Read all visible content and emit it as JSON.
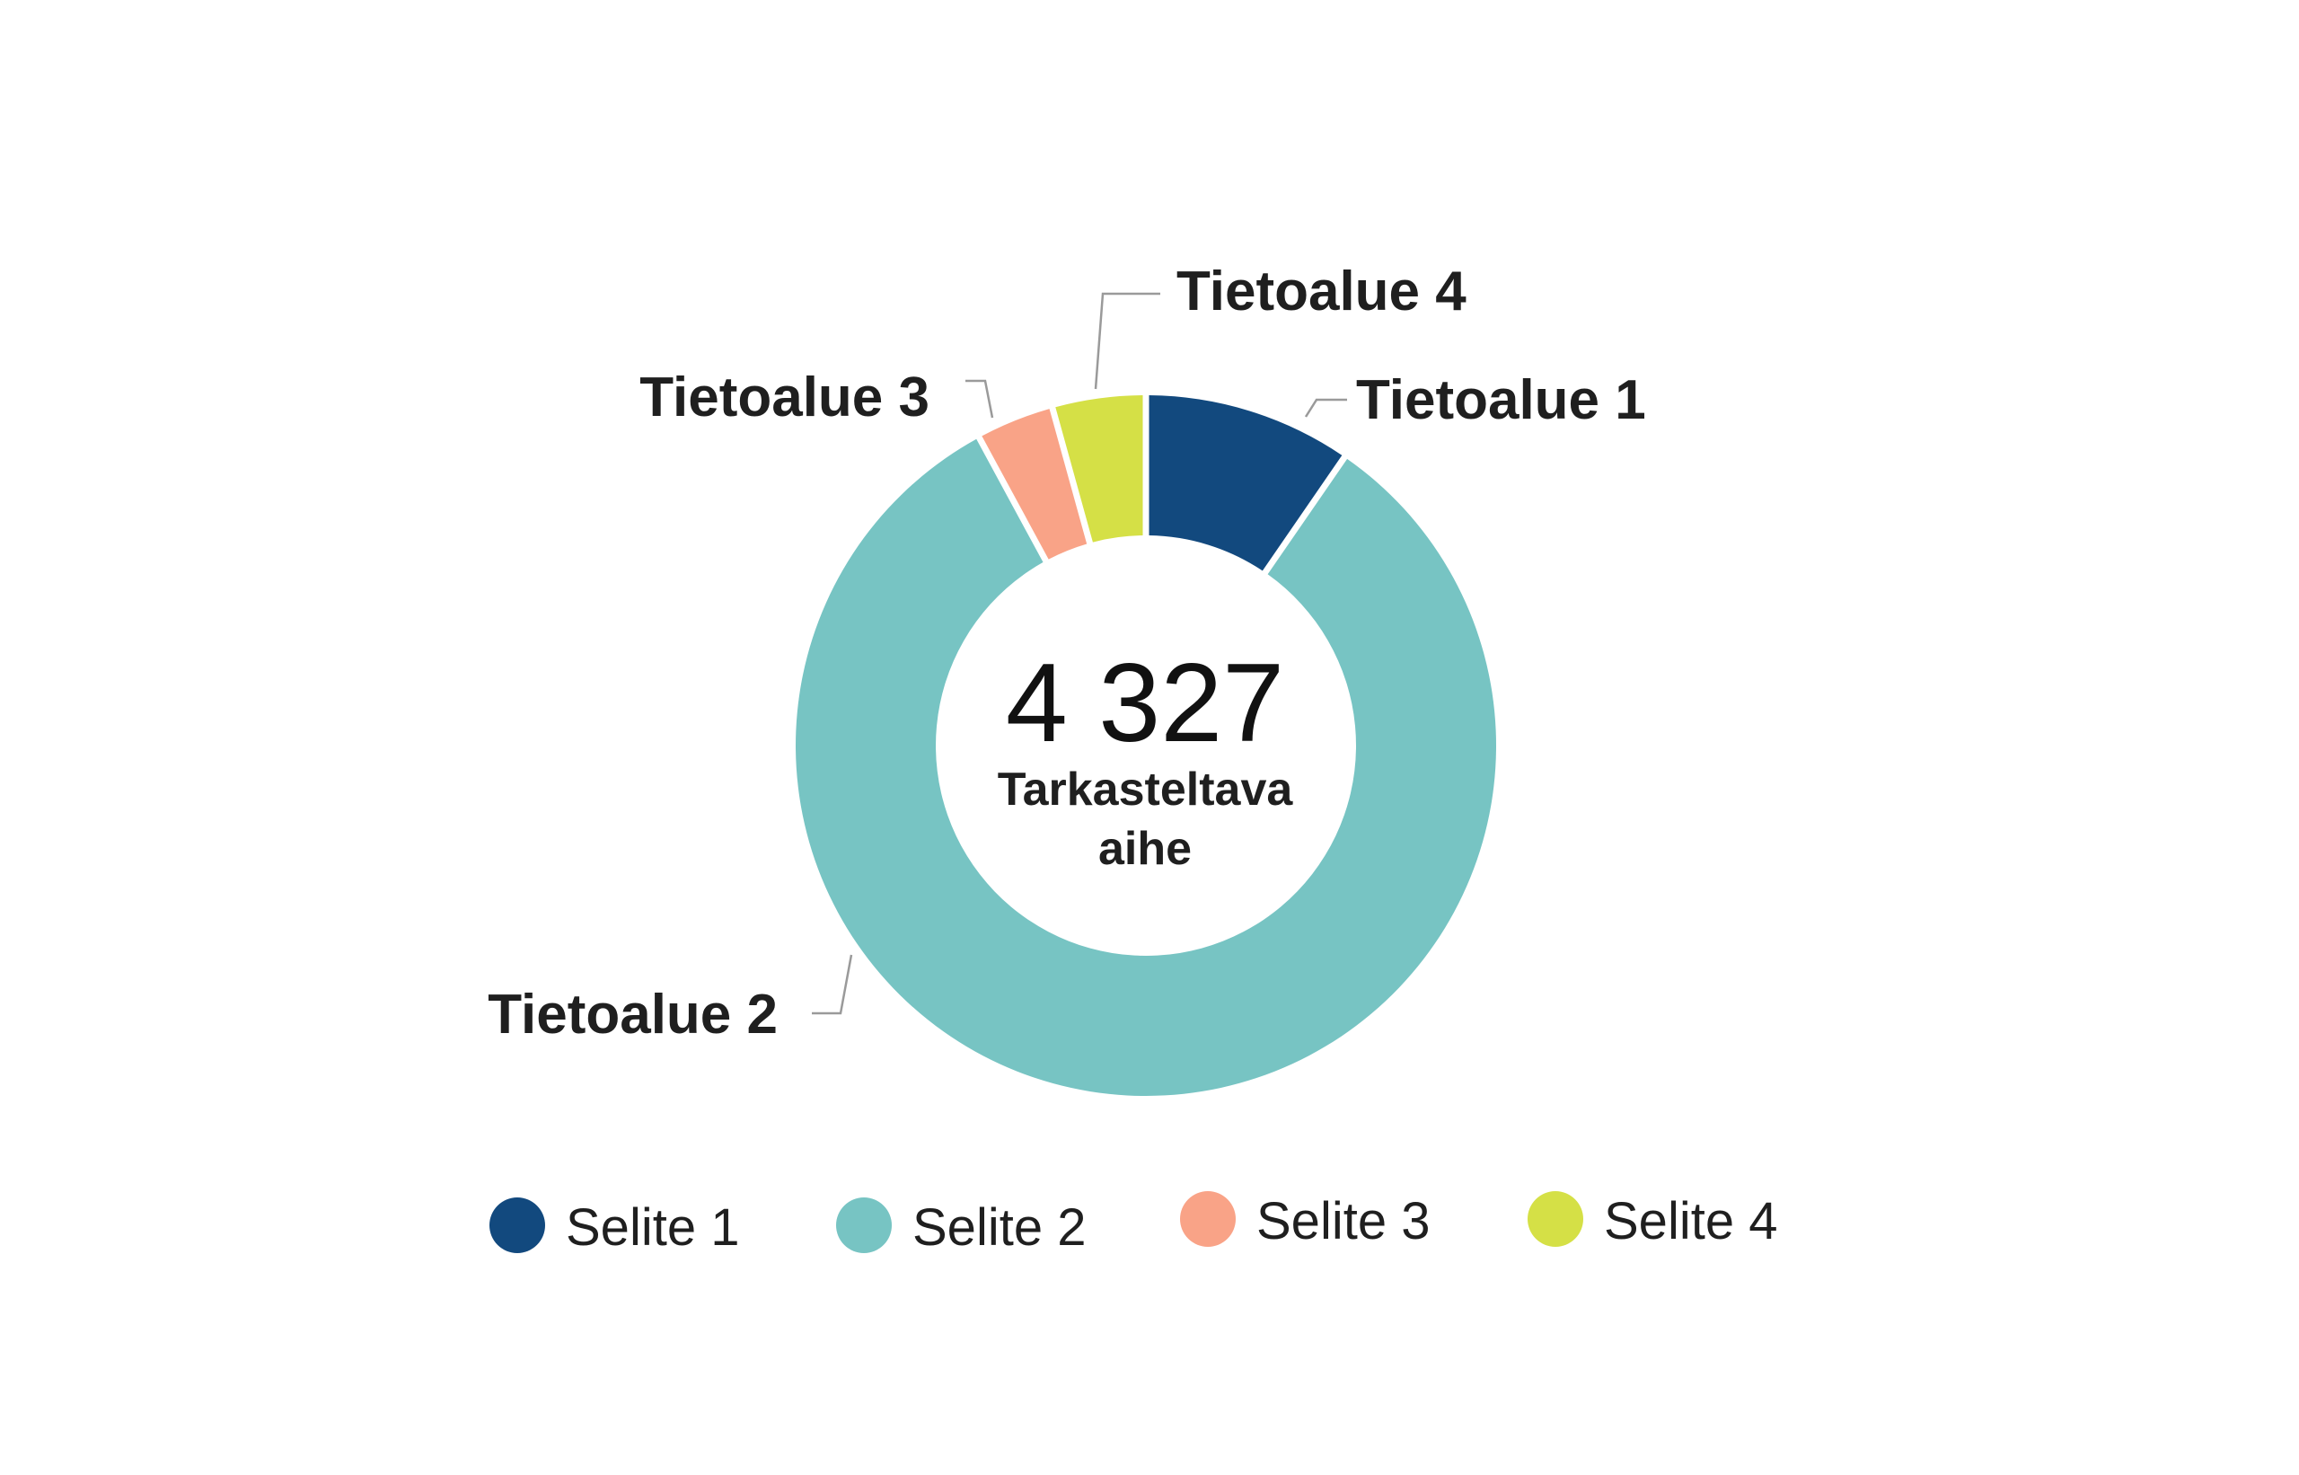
{
  "chart_data": {
    "type": "pie",
    "variant": "donut",
    "title": "",
    "center": {
      "total": "4 327",
      "caption_lines": [
        "Tarkasteltava",
        "aihe"
      ]
    },
    "slices": [
      {
        "label": "Tietoalue 1",
        "value": 9.6,
        "color": "#12497e"
      },
      {
        "label": "Tietoalue 2",
        "value": 82.5,
        "color": "#77c4c3"
      },
      {
        "label": "Tietoalue 3",
        "value": 3.6,
        "color": "#f9a387"
      },
      {
        "label": "Tietoalue 4",
        "value": 4.3,
        "color": "#d5e046"
      }
    ],
    "legend": {
      "placement": "bottom",
      "items": [
        {
          "label": "Selite 1",
          "color": "#12497e"
        },
        {
          "label": "Selite 2",
          "color": "#77c4c3"
        },
        {
          "label": "Selite 3",
          "color": "#f9a387"
        },
        {
          "label": "Selite 4",
          "color": "#d5e046"
        }
      ]
    }
  }
}
